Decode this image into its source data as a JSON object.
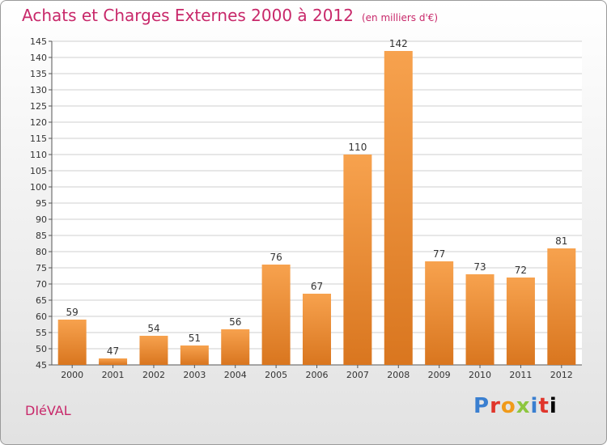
{
  "header": {
    "title": "Achats et Charges Externes 2000 à 2012",
    "unit": "(en milliers d'€)"
  },
  "footer": {
    "commune": "DIéVAL",
    "brand": "Proxiti"
  },
  "colors": {
    "bar_light": "#f7a24e",
    "bar_dark": "#d9761f",
    "title": "#c8286a",
    "grid": "#cfcfcf"
  },
  "chart_data": {
    "type": "bar",
    "title": "Achats et Charges Externes 2000 à 2012",
    "subtitle": "(en milliers d'€)",
    "xlabel": "",
    "ylabel": "",
    "categories": [
      "2000",
      "2001",
      "2002",
      "2003",
      "2004",
      "2005",
      "2006",
      "2007",
      "2008",
      "2009",
      "2010",
      "2011",
      "2012"
    ],
    "values": [
      59,
      47,
      54,
      51,
      56,
      76,
      67,
      110,
      142,
      77,
      73,
      72,
      81
    ],
    "ylim": [
      45,
      145
    ],
    "yticks": [
      45,
      50,
      55,
      60,
      65,
      70,
      75,
      80,
      85,
      90,
      95,
      100,
      105,
      110,
      115,
      120,
      125,
      130,
      135,
      140,
      145
    ],
    "grid": true,
    "legend": "none"
  }
}
